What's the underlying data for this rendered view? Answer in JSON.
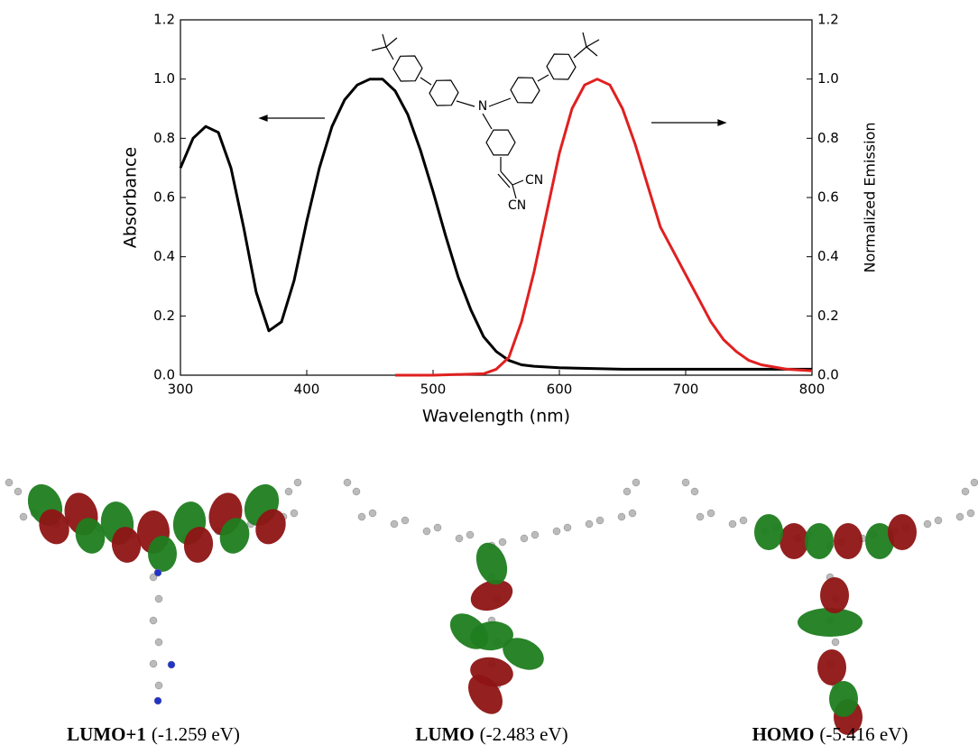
{
  "chart_data": {
    "type": "line",
    "xlabel": "Wavelength (nm)",
    "ylabel": "Absorbance",
    "y2label": "Normalized Emission",
    "xlim": [
      300,
      800
    ],
    "xticks": [
      300,
      400,
      500,
      600,
      700,
      800
    ],
    "ylim": [
      0,
      1.2
    ],
    "yticks": [
      {
        "value": 0,
        "label": "0.0"
      },
      0.2,
      0.4,
      0.6,
      0.8,
      {
        "value": 1,
        "label": "1.0"
      },
      1.2
    ],
    "y2lim": [
      0,
      1.2
    ],
    "y2ticks": [
      {
        "value": 0,
        "label": "0.0"
      },
      0.2,
      0.4,
      0.6,
      0.8,
      {
        "value": 1,
        "label": "1.0"
      },
      1.2
    ],
    "series": [
      {
        "color": "#000000",
        "axis": "y",
        "x": [
          300,
          310,
          320,
          330,
          340,
          350,
          360,
          370,
          380,
          390,
          400,
          410,
          420,
          430,
          440,
          450,
          460,
          470,
          480,
          490,
          500,
          510,
          520,
          530,
          540,
          550,
          560,
          570,
          580,
          600,
          650,
          700,
          750,
          800
        ],
        "values": [
          0.7,
          0.8,
          0.84,
          0.82,
          0.7,
          0.5,
          0.28,
          0.15,
          0.18,
          0.32,
          0.52,
          0.7,
          0.84,
          0.93,
          0.98,
          1.0,
          1.0,
          0.96,
          0.88,
          0.76,
          0.62,
          0.47,
          0.33,
          0.22,
          0.13,
          0.08,
          0.05,
          0.035,
          0.03,
          0.025,
          0.02,
          0.02,
          0.02,
          0.02
        ]
      },
      {
        "color": "#e02020",
        "axis": "y2",
        "x": [
          470,
          500,
          540,
          550,
          560,
          570,
          580,
          590,
          600,
          610,
          620,
          630,
          640,
          650,
          660,
          670,
          680,
          690,
          700,
          710,
          720,
          730,
          740,
          750,
          760,
          780,
          800
        ],
        "values": [
          0,
          0,
          0.005,
          0.02,
          0.06,
          0.18,
          0.35,
          0.55,
          0.75,
          0.9,
          0.98,
          1.0,
          0.98,
          0.9,
          0.78,
          0.64,
          0.5,
          0.42,
          0.34,
          0.26,
          0.18,
          0.12,
          0.08,
          0.05,
          0.035,
          0.02,
          0.015
        ]
      }
    ]
  },
  "structure_labels": [
    "N",
    "CN",
    "CN"
  ],
  "orbitals": [
    {
      "name": "LUMO+1",
      "energy": "(-1.259 eV)"
    },
    {
      "name": "LUMO",
      "energy": "(-2.483 eV)"
    },
    {
      "name": "HOMO",
      "energy": "(-5.416 eV)"
    }
  ]
}
